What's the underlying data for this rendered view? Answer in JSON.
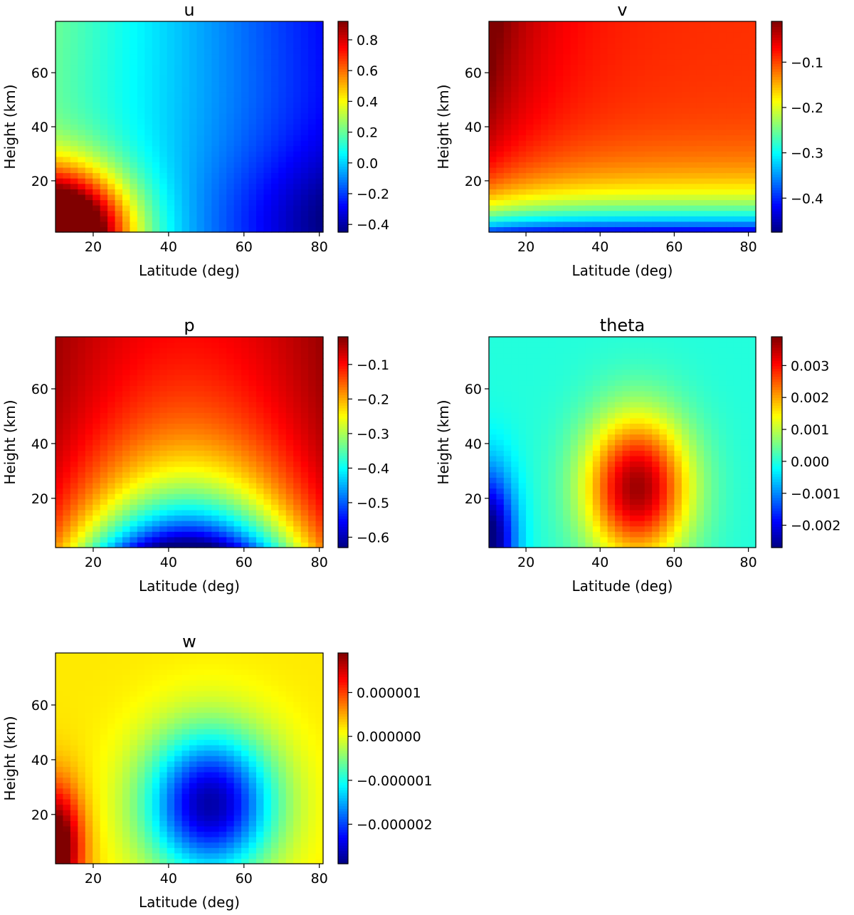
{
  "chart_data": [
    {
      "type": "heatmap",
      "title": "u",
      "xlabel": "Latitude (deg)",
      "ylabel": "Height (km)",
      "xlim": [
        10,
        81
      ],
      "ylim": [
        1,
        79
      ],
      "xticks": [
        20,
        40,
        60,
        80
      ],
      "yticks": [
        20,
        40,
        60
      ],
      "colormap": "jet",
      "vmin": -0.45,
      "vmax": 0.92,
      "colorbar_ticks": [
        0.8,
        0.6,
        0.4,
        0.2,
        0.0,
        -0.2,
        -0.4
      ],
      "colorbar_labels": [
        "0.8",
        "0.6",
        "0.4",
        "0.2",
        "0.0",
        "−0.2",
        "−0.4"
      ],
      "field": "u"
    },
    {
      "type": "heatmap",
      "title": "v",
      "xlabel": "Latitude (deg)",
      "ylabel": "Height (km)",
      "xlim": [
        10,
        82
      ],
      "ylim": [
        1,
        79
      ],
      "xticks": [
        20,
        40,
        60,
        80
      ],
      "yticks": [
        20,
        40,
        60
      ],
      "colormap": "jet",
      "vmin": -0.475,
      "vmax": -0.01,
      "colorbar_ticks": [
        -0.1,
        -0.2,
        -0.3,
        -0.4
      ],
      "colorbar_labels": [
        "−0.1",
        "−0.2",
        "−0.3",
        "−0.4"
      ],
      "field": "v"
    },
    {
      "type": "heatmap",
      "title": "p",
      "xlabel": "Latitude (deg)",
      "ylabel": "Height (km)",
      "xlim": [
        10,
        81
      ],
      "ylim": [
        2,
        79
      ],
      "xticks": [
        20,
        40,
        60,
        80
      ],
      "yticks": [
        20,
        40,
        60
      ],
      "colormap": "jet",
      "vmin": -0.63,
      "vmax": -0.02,
      "colorbar_ticks": [
        -0.1,
        -0.2,
        -0.3,
        -0.4,
        -0.5,
        -0.6
      ],
      "colorbar_labels": [
        "−0.1",
        "−0.2",
        "−0.3",
        "−0.4",
        "−0.5",
        "−0.6"
      ],
      "field": "p"
    },
    {
      "type": "heatmap",
      "title": "theta",
      "xlabel": "Latitude (deg)",
      "ylabel": "Height (km)",
      "xlim": [
        10,
        82
      ],
      "ylim": [
        2,
        79
      ],
      "xticks": [
        20,
        40,
        60,
        80
      ],
      "yticks": [
        20,
        40,
        60
      ],
      "colormap": "jet",
      "vmin": -0.0027,
      "vmax": 0.0039,
      "colorbar_ticks": [
        0.003,
        0.002,
        0.001,
        0.0,
        -0.001,
        -0.002
      ],
      "colorbar_labels": [
        "0.003",
        "0.002",
        "0.001",
        "0.000",
        "−0.001",
        "−0.002"
      ],
      "field": "theta"
    },
    {
      "type": "heatmap",
      "title": "w",
      "xlabel": "Latitude (deg)",
      "ylabel": "Height (km)",
      "xlim": [
        10,
        81
      ],
      "ylim": [
        2,
        79
      ],
      "xticks": [
        20,
        40,
        60,
        80
      ],
      "yticks": [
        20,
        40,
        60
      ],
      "colormap": "jet",
      "vmin": -2.9e-06,
      "vmax": 1.9e-06,
      "colorbar_ticks": [
        1e-06,
        0.0,
        -1e-06,
        -2e-06
      ],
      "colorbar_labels": [
        "0.000001",
        "0.000000",
        "−0.000001",
        "−0.000002"
      ],
      "field": "w"
    }
  ]
}
